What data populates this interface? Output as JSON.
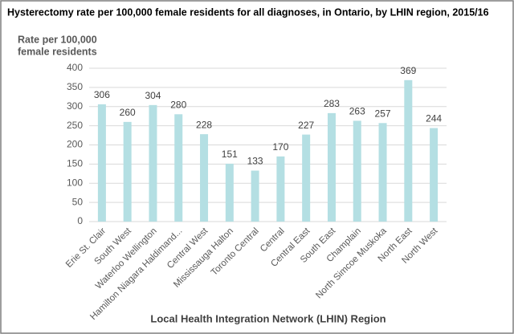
{
  "chart_data": {
    "type": "bar",
    "title": "Hysterectomy rate per 100,000 female residents for all diagnoses, in Ontario, by LHIN  region, 2015/16",
    "y_axis_title": [
      "Rate per 100,000",
      "female residents"
    ],
    "x_axis_title": "Local Health Integration Network (LHIN) Region",
    "categories": [
      "Erie St. Clair",
      "South West",
      "Waterloo Wellington",
      "Hamilton Niagara Haldimand...",
      "Central West",
      "Mississauga Halton",
      "Toronto Central",
      "Central",
      "Central East",
      "South East",
      "Champlain",
      "North Simcoe Muskoka",
      "North East",
      "North West"
    ],
    "values": [
      306,
      260,
      304,
      280,
      228,
      151,
      133,
      170,
      227,
      283,
      263,
      257,
      369,
      244
    ],
    "color": "#b4dfe3",
    "ylim": [
      0,
      400
    ],
    "yticks": [
      0,
      50,
      100,
      150,
      200,
      250,
      300,
      350,
      400
    ],
    "grid": true
  }
}
